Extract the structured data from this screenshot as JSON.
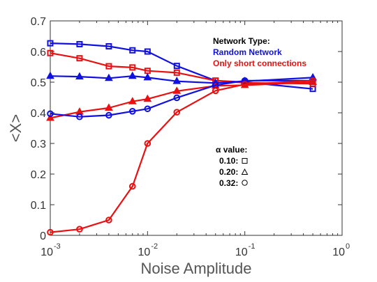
{
  "chart_data": {
    "type": "line",
    "xlabel": "Noise Amplitude",
    "ylabel": "<X>",
    "xscale": "log",
    "xlim": [
      0.001,
      1
    ],
    "ylim": [
      0,
      0.7
    ],
    "x_ticks": [
      {
        "value": 0.001,
        "base": "10",
        "exp": "-3"
      },
      {
        "value": 0.01,
        "base": "10",
        "exp": "-2"
      },
      {
        "value": 0.1,
        "base": "10",
        "exp": "-1"
      },
      {
        "value": 1,
        "base": "10",
        "exp": "0"
      }
    ],
    "y_ticks": [
      {
        "value": 0,
        "label": "0"
      },
      {
        "value": 0.1,
        "label": "0.1"
      },
      {
        "value": 0.2,
        "label": "0.2"
      },
      {
        "value": 0.3,
        "label": "0.3"
      },
      {
        "value": 0.4,
        "label": "0.4"
      },
      {
        "value": 0.5,
        "label": "0.5"
      },
      {
        "value": 0.6,
        "label": "0.6"
      },
      {
        "value": 0.7,
        "label": "0.7"
      }
    ],
    "grid": false,
    "series": [
      {
        "network": "random",
        "alpha": "0.10",
        "marker": "square",
        "color": "#1010e0",
        "x": [
          0.001,
          0.002,
          0.004,
          0.007,
          0.01,
          0.02,
          0.05,
          0.1,
          0.5
        ],
        "y": [
          0.627,
          0.624,
          0.617,
          0.604,
          0.6,
          0.553,
          0.505,
          0.5,
          0.478
        ]
      },
      {
        "network": "short",
        "alpha": "0.10",
        "marker": "square",
        "color": "#e81010",
        "x": [
          0.001,
          0.002,
          0.004,
          0.007,
          0.01,
          0.02,
          0.05,
          0.1,
          0.5
        ],
        "y": [
          0.595,
          0.578,
          0.552,
          0.548,
          0.537,
          0.531,
          0.505,
          0.498,
          0.495
        ]
      },
      {
        "network": "random",
        "alpha": "0.20",
        "marker": "triangle",
        "color": "#1010e0",
        "x": [
          0.001,
          0.002,
          0.004,
          0.007,
          0.01,
          0.02,
          0.05,
          0.1,
          0.5
        ],
        "y": [
          0.52,
          0.518,
          0.513,
          0.52,
          0.515,
          0.503,
          0.497,
          0.503,
          0.515
        ]
      },
      {
        "network": "short",
        "alpha": "0.20",
        "marker": "triangle",
        "color": "#e81010",
        "x": [
          0.001,
          0.002,
          0.004,
          0.007,
          0.01,
          0.02,
          0.05,
          0.1,
          0.5
        ],
        "y": [
          0.383,
          0.403,
          0.416,
          0.437,
          0.445,
          0.471,
          0.488,
          0.49,
          0.5
        ]
      },
      {
        "network": "random",
        "alpha": "0.32",
        "marker": "circle",
        "color": "#1010e0",
        "x": [
          0.001,
          0.002,
          0.004,
          0.007,
          0.01,
          0.02,
          0.05,
          0.1,
          0.5
        ],
        "y": [
          0.397,
          0.387,
          0.392,
          0.405,
          0.413,
          0.449,
          0.49,
          0.505,
          0.505
        ]
      },
      {
        "network": "short",
        "alpha": "0.32",
        "marker": "circle",
        "color": "#e81010",
        "x": [
          0.001,
          0.002,
          0.004,
          0.007,
          0.01,
          0.02,
          0.05,
          0.1,
          0.5
        ],
        "y": [
          0.01,
          0.02,
          0.05,
          0.16,
          0.3,
          0.402,
          0.472,
          0.493,
          0.505
        ]
      }
    ],
    "legend": {
      "placement": "top-right",
      "title": "Network Type:",
      "entries": [
        {
          "label": "Random Network",
          "color": "#1010e0"
        },
        {
          "label": "Only short connections",
          "color": "#e81010"
        }
      ]
    },
    "alpha_legend": {
      "placement": "center-right",
      "title": "α value:",
      "entries": [
        {
          "label": "0.10:",
          "marker": "square"
        },
        {
          "label": "0.20:",
          "marker": "triangle"
        },
        {
          "label": "0.32:",
          "marker": "circle"
        }
      ]
    }
  }
}
